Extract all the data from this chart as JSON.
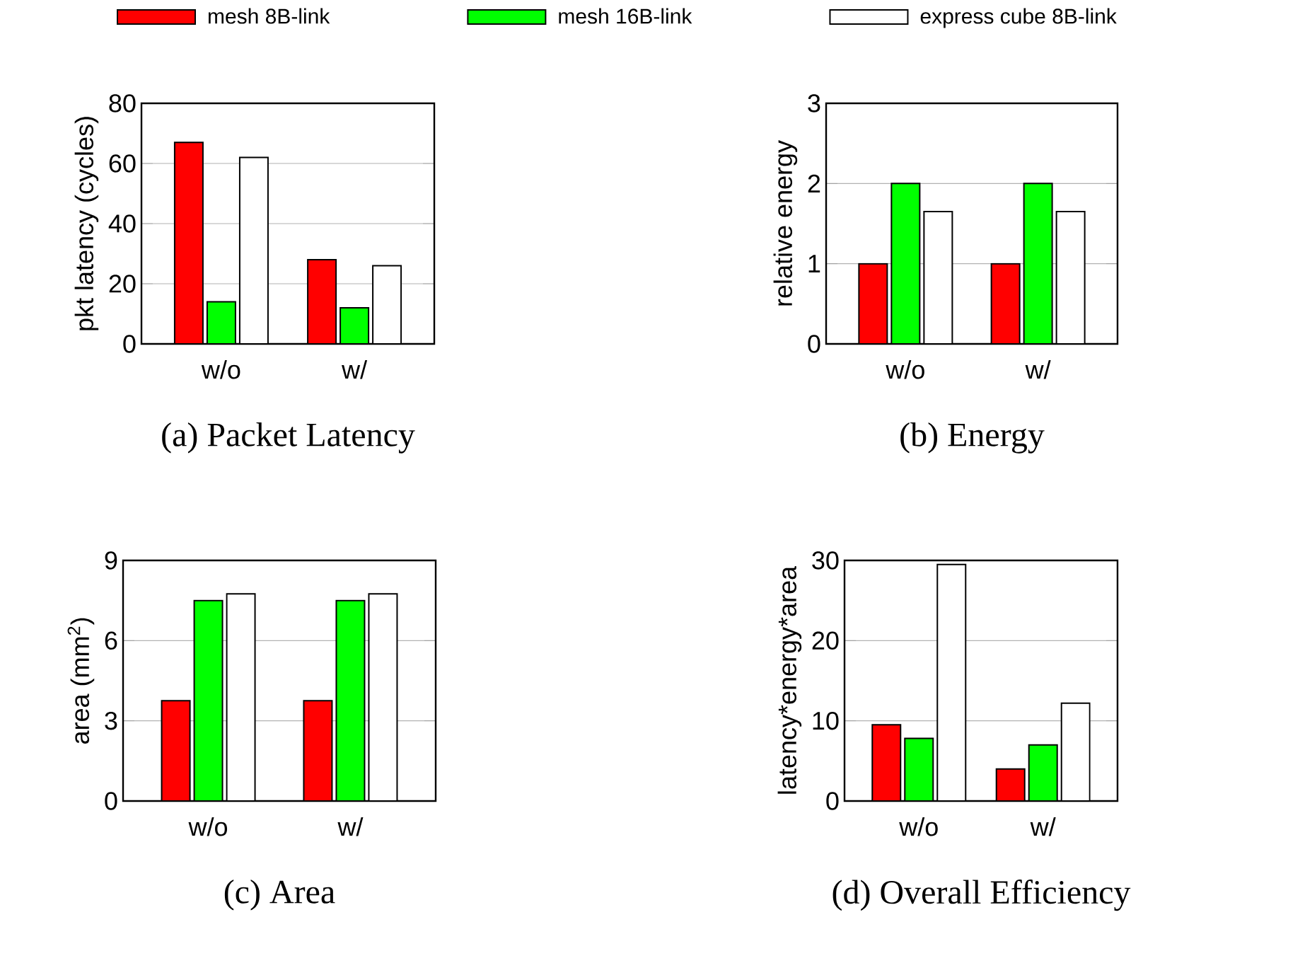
{
  "chart_data": [
    {
      "type": "bar",
      "title": "(a) Packet Latency",
      "ylabel": "pkt latency (cycles)",
      "categories": [
        "w/o",
        "w/"
      ],
      "series": [
        {
          "name": "mesh 8B-link",
          "color": "#ff0000",
          "values": [
            67,
            28
          ]
        },
        {
          "name": "mesh 16B-link",
          "color": "#00ff00",
          "values": [
            14,
            12
          ]
        },
        {
          "name": "express cube 8B-link",
          "color": "#ffffff",
          "values": [
            62,
            26
          ]
        }
      ],
      "ylim": [
        0,
        80
      ],
      "yticks": [
        0,
        20,
        40,
        60,
        80
      ],
      "grid": "y",
      "legend": "top"
    },
    {
      "type": "bar",
      "title": "(b) Energy",
      "ylabel": "relative energy",
      "categories": [
        "w/o",
        "w/"
      ],
      "series": [
        {
          "color": "#ff0000",
          "values": [
            1,
            1
          ]
        },
        {
          "color": "#00ff00",
          "values": [
            2,
            2
          ]
        },
        {
          "color": "#ffffff",
          "values": [
            1.65,
            1.65
          ]
        }
      ],
      "ylim": [
        0,
        3
      ],
      "yticks": [
        0,
        1,
        2,
        3
      ],
      "grid": "y"
    },
    {
      "type": "bar",
      "title": "(c) Area",
      "ylabel": "area (mm$^{2}$)",
      "categories": [
        "w/o",
        "w/"
      ],
      "series": [
        {
          "color": "#ff0000",
          "values": [
            3.75,
            3.75
          ]
        },
        {
          "color": "#00ff00",
          "values": [
            7.5,
            7.5
          ]
        },
        {
          "color": "#ffffff",
          "values": [
            7.75,
            7.75
          ]
        }
      ],
      "ylim": [
        0,
        9
      ],
      "yticks": [
        0,
        3,
        6,
        9
      ],
      "grid": "y"
    },
    {
      "type": "bar",
      "title": "(d) Overall Efficiency",
      "ylabel": "latency*energy*area",
      "categories": [
        "w/o",
        "w/"
      ],
      "series": [
        {
          "color": "#ff0000",
          "values": [
            9.5,
            4
          ]
        },
        {
          "color": "#00ff00",
          "values": [
            7.8,
            7
          ]
        },
        {
          "color": "#ffffff",
          "values": [
            29.5,
            12.2
          ]
        }
      ],
      "ylim": [
        0,
        30
      ],
      "yticks": [
        0,
        10,
        20,
        30
      ],
      "grid": "y"
    }
  ]
}
